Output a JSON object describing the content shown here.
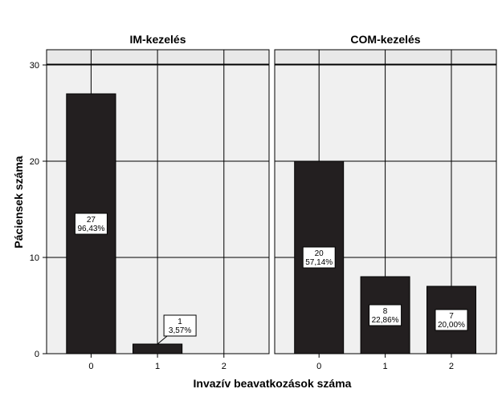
{
  "chart_data": {
    "type": "bar",
    "xlabel": "Invazív beavatkozások száma",
    "ylabel": "Páciensek száma",
    "ylim": [
      0,
      30
    ],
    "yticks": [
      "0",
      "10",
      "20",
      "30"
    ],
    "categories": [
      "0",
      "1",
      "2"
    ],
    "grid": true,
    "colors": {
      "bar": "#231f20",
      "panel": "#f0f0f0",
      "header": "#e8e8e8",
      "grid": "#000000"
    },
    "panels": [
      {
        "title": "IM-kezelés",
        "values": [
          27,
          1,
          0
        ],
        "labels": [
          {
            "count": "27",
            "percent": "96,43%"
          },
          {
            "count": "1",
            "percent": "3,57%"
          },
          {
            "count": "",
            "percent": ""
          }
        ]
      },
      {
        "title": "COM-kezelés",
        "values": [
          20,
          8,
          7
        ],
        "labels": [
          {
            "count": "20",
            "percent": "57,14%"
          },
          {
            "count": "8",
            "percent": "22,86%"
          },
          {
            "count": "7",
            "percent": "20,00%"
          }
        ]
      }
    ]
  }
}
